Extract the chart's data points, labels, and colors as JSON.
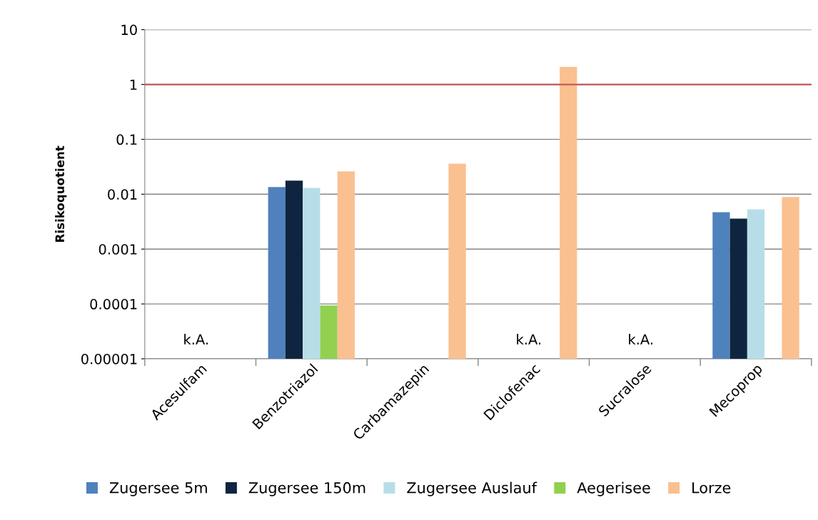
{
  "chart_data": {
    "type": "bar",
    "ylabel": "Risikoquotient",
    "log": true,
    "ylim": [
      1e-05,
      10
    ],
    "yticks": [
      {
        "value": 1e-05,
        "label": "0.00001"
      },
      {
        "value": 0.0001,
        "label": "0.0001"
      },
      {
        "value": 0.001,
        "label": "0.001"
      },
      {
        "value": 0.01,
        "label": "0.01"
      },
      {
        "value": 0.1,
        "label": "0.1"
      },
      {
        "value": 1,
        "label": "1"
      },
      {
        "value": 10,
        "label": "10"
      }
    ],
    "grid": "y",
    "legend": "bottom",
    "categories": [
      "Acesulfam",
      "Benzotriazol",
      "Carbamazepin",
      "Diclofenac",
      "Sucralose",
      "Mecoprop"
    ],
    "series": [
      {
        "name": "Zugersee 5m",
        "color": "#4f81bd",
        "values": [
          null,
          0.0135,
          null,
          null,
          null,
          0.0047
        ]
      },
      {
        "name": "Zugersee 150m",
        "color": "#0f243e",
        "values": [
          null,
          0.0177,
          null,
          null,
          null,
          0.0036
        ]
      },
      {
        "name": "Zugersee Auslauf",
        "color": "#b7dee8",
        "values": [
          null,
          0.013,
          null,
          null,
          null,
          0.0053
        ]
      },
      {
        "name": "Aegerisee",
        "color": "#92d050",
        "values": [
          null,
          9.4e-05,
          null,
          null,
          null,
          null
        ]
      },
      {
        "name": "Lorze",
        "color": "#fac090",
        "values": [
          null,
          0.026,
          0.036,
          2.1,
          null,
          0.0089
        ]
      }
    ],
    "ref_lines": [
      {
        "axis": "y",
        "value": 1,
        "color": "#c0504d"
      }
    ],
    "annotations": [
      "k.A.",
      "k.A.",
      "k.A."
    ]
  }
}
